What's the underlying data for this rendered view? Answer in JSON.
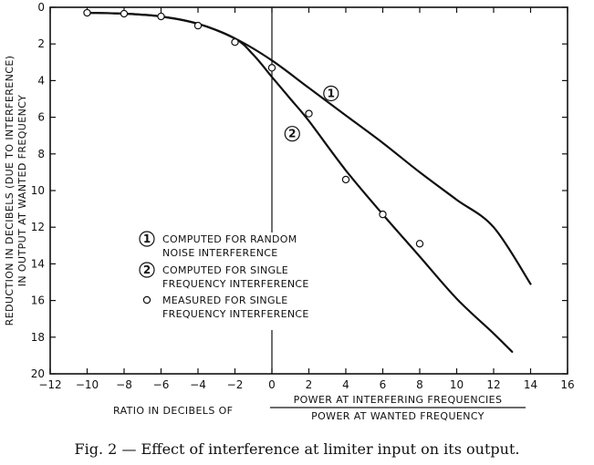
{
  "chart_data": {
    "type": "line",
    "xlabel_prefix": "RATIO IN DECIBELS OF",
    "xlabel_numerator": "POWER AT INTERFERING FREQUENCIES",
    "xlabel_denominator": "POWER AT WANTED FREQUENCY",
    "ylabel_line1": "REDUCTION IN DECIBELS (DUE TO INTERFERENCE)",
    "ylabel_line2": "IN OUTPUT AT WANTED FREQUENCY",
    "xlim": [
      -12,
      16
    ],
    "ylim": [
      0,
      20
    ],
    "y_inverted": true,
    "x_ticks": [
      "−12",
      "−10",
      "−8",
      "−6",
      "−4",
      "−2",
      "0",
      "2",
      "4",
      "6",
      "8",
      "10",
      "12",
      "14",
      "16"
    ],
    "y_ticks": [
      "0",
      "2",
      "4",
      "6",
      "8",
      "10",
      "12",
      "14",
      "16",
      "18",
      "20"
    ],
    "grid": false,
    "series": [
      {
        "marker": "1",
        "x": [
          -10,
          -8,
          -6,
          -4,
          -2,
          0,
          2,
          4,
          6,
          8,
          10,
          12,
          14
        ],
        "y": [
          0.3,
          0.35,
          0.5,
          0.9,
          1.7,
          2.9,
          4.4,
          5.9,
          7.4,
          9.0,
          10.5,
          12.0,
          15.1
        ]
      },
      {
        "marker": "2",
        "x": [
          -10,
          -8,
          -6,
          -4,
          -2,
          -1,
          0,
          1,
          2,
          4,
          6,
          8,
          10,
          12,
          13
        ],
        "y": [
          0.3,
          0.35,
          0.5,
          0.9,
          1.7,
          2.6,
          3.8,
          5.0,
          6.2,
          8.9,
          11.3,
          13.6,
          15.9,
          17.8,
          18.8
        ]
      },
      {
        "marker": "o",
        "x": [
          -10,
          -8,
          -6,
          -4,
          -2,
          0,
          2,
          4,
          6,
          8
        ],
        "y": [
          0.3,
          0.35,
          0.5,
          1.0,
          1.9,
          3.3,
          5.8,
          9.4,
          11.3,
          12.9
        ]
      }
    ],
    "legend_position": "lower-left",
    "legend": [
      {
        "symbol": "1",
        "line1": "COMPUTED FOR RANDOM",
        "line2": "NOISE INTERFERENCE"
      },
      {
        "symbol": "2",
        "line1": "COMPUTED FOR SINGLE",
        "line2": "FREQUENCY INTERFERENCE"
      },
      {
        "symbol": "o",
        "line1": "MEASURED FOR SINGLE",
        "line2": "FREQUENCY INTERFERENCE"
      }
    ],
    "curve_labels": [
      "1",
      "2"
    ]
  },
  "caption": "Fig. 2 — Effect of interference at limiter input on its output."
}
